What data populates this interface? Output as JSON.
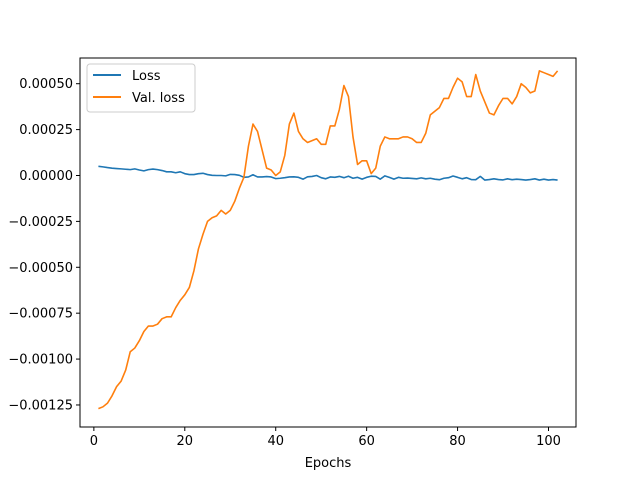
{
  "chart_data": {
    "type": "line",
    "title": "",
    "xlabel": "Epochs",
    "ylabel": "",
    "xlim": [
      -3.05,
      106.05
    ],
    "ylim": [
      -0.00137,
      0.00064
    ],
    "x_ticks": [
      0,
      20,
      40,
      60,
      80,
      100
    ],
    "x_tick_labels": [
      "0",
      "20",
      "40",
      "60",
      "80",
      "100"
    ],
    "y_ticks": [
      -0.00125,
      -0.001,
      -0.00075,
      -0.0005,
      -0.00025,
      0,
      0.00025,
      0.0005
    ],
    "y_tick_labels": [
      "−0.00125",
      "−0.00100",
      "−0.00075",
      "−0.00050",
      "−0.00025",
      "0.00000",
      "0.00025",
      "0.00050"
    ],
    "grid": false,
    "legend_position": "top-left",
    "series": [
      {
        "name": "Loss",
        "color": "#1f77b4",
        "x": [
          1,
          2,
          3,
          4,
          5,
          6,
          7,
          8,
          9,
          10,
          11,
          12,
          13,
          14,
          15,
          16,
          17,
          18,
          19,
          20,
          21,
          22,
          23,
          24,
          25,
          26,
          27,
          28,
          29,
          30,
          31,
          32,
          33,
          34,
          35,
          36,
          37,
          38,
          39,
          40,
          41,
          42,
          43,
          44,
          45,
          46,
          47,
          48,
          49,
          50,
          51,
          52,
          53,
          54,
          55,
          56,
          57,
          58,
          59,
          60,
          61,
          62,
          63,
          64,
          65,
          66,
          67,
          68,
          69,
          70,
          71,
          72,
          73,
          74,
          75,
          76,
          77,
          78,
          79,
          80,
          81,
          82,
          83,
          84,
          85,
          86,
          87,
          88,
          89,
          90,
          91,
          92,
          93,
          94,
          95,
          96,
          97,
          98,
          99,
          100,
          101,
          102
        ],
        "values": [
          5e-05,
          4.7e-05,
          4.3e-05,
          4e-05,
          3.8e-05,
          3.6e-05,
          3.4e-05,
          3.2e-05,
          3.6e-05,
          3e-05,
          2.5e-05,
          3.2e-05,
          3.5e-05,
          3.2e-05,
          2.7e-05,
          2e-05,
          2e-05,
          1.5e-05,
          2e-05,
          1e-05,
          5e-06,
          5e-06,
          1e-05,
          1.2e-05,
          5e-06,
          1e-06,
          0.0,
          0.0,
          -2e-06,
          6e-06,
          5e-06,
          1e-06,
          -1e-05,
          -8e-06,
          4e-06,
          -8e-06,
          -8e-06,
          -6e-06,
          -8e-06,
          -1.7e-05,
          -1.5e-05,
          -1.2e-05,
          -8e-06,
          -7e-06,
          -1e-05,
          -2e-05,
          -7e-06,
          -5e-06,
          0.0,
          -1.2e-05,
          -1.8e-05,
          -8e-06,
          -1e-05,
          -5e-06,
          -1.2e-05,
          -4e-06,
          -1.5e-05,
          -1e-05,
          -2e-05,
          -1e-05,
          -4e-06,
          -5e-06,
          -2e-05,
          -2e-06,
          -1e-05,
          -2e-05,
          -1e-05,
          -1.5e-05,
          -1.4e-05,
          -1.6e-05,
          -1.8e-05,
          -1.3e-05,
          -1.8e-05,
          -1.5e-05,
          -2e-05,
          -2.3e-05,
          -1.5e-05,
          -1.2e-05,
          -3e-06,
          -1e-05,
          -1.8e-05,
          -1.2e-05,
          -2.2e-05,
          -2.3e-05,
          -5e-06,
          -2.5e-05,
          -2.2e-05,
          -1.8e-05,
          -2.2e-05,
          -2.4e-05,
          -1.8e-05,
          -2.3e-05,
          -2e-05,
          -2.2e-05,
          -2.5e-05,
          -2.2e-05,
          -1.8e-05,
          -2.5e-05,
          -2e-05,
          -2.5e-05,
          -2.2e-05,
          -2.5e-05
        ]
      },
      {
        "name": "Val. loss",
        "color": "#ff7f0e",
        "x": [
          1,
          2,
          3,
          4,
          5,
          6,
          7,
          8,
          9,
          10,
          11,
          12,
          13,
          14,
          15,
          16,
          17,
          18,
          19,
          20,
          21,
          22,
          23,
          24,
          25,
          26,
          27,
          28,
          29,
          30,
          31,
          32,
          33,
          34,
          35,
          36,
          37,
          38,
          39,
          40,
          41,
          42,
          43,
          44,
          45,
          46,
          47,
          48,
          49,
          50,
          51,
          52,
          53,
          54,
          55,
          56,
          57,
          58,
          59,
          60,
          61,
          62,
          63,
          64,
          65,
          66,
          67,
          68,
          69,
          70,
          71,
          72,
          73,
          74,
          75,
          76,
          77,
          78,
          79,
          80,
          81,
          82,
          83,
          84,
          85,
          86,
          87,
          88,
          89,
          90,
          91,
          92,
          93,
          94,
          95,
          96,
          97,
          98,
          99,
          100,
          101,
          102
        ],
        "values": [
          -0.00127,
          -0.00126,
          -0.00124,
          -0.0012,
          -0.00115,
          -0.00112,
          -0.00106,
          -0.00096,
          -0.00094,
          -0.0009,
          -0.00085,
          -0.00082,
          -0.00082,
          -0.00081,
          -0.00078,
          -0.00077,
          -0.00077,
          -0.00072,
          -0.00068,
          -0.00065,
          -0.00061,
          -0.00052,
          -0.0004,
          -0.00032,
          -0.00025,
          -0.00023,
          -0.00022,
          -0.00019,
          -0.00021,
          -0.00019,
          -0.00014,
          -7e-05,
          -1e-05,
          0.00016,
          0.00028,
          0.00024,
          0.00014,
          4e-05,
          3e-05,
          0.0,
          2e-05,
          0.00011,
          0.00028,
          0.00034,
          0.00024,
          0.0002,
          0.00018,
          0.00019,
          0.0002,
          0.00017,
          0.00017,
          0.00027,
          0.00027,
          0.00036,
          0.00049,
          0.00043,
          0.00021,
          6e-05,
          8e-05,
          8e-05,
          1e-05,
          4e-05,
          0.00016,
          0.00021,
          0.0002,
          0.0002,
          0.0002,
          0.00021,
          0.00021,
          0.0002,
          0.00018,
          0.00018,
          0.00023,
          0.00033,
          0.00035,
          0.00037,
          0.00042,
          0.00042,
          0.00048,
          0.00053,
          0.00051,
          0.00043,
          0.00043,
          0.00055,
          0.00046,
          0.0004,
          0.00034,
          0.00033,
          0.00038,
          0.00042,
          0.00042,
          0.00039,
          0.00043,
          0.0005,
          0.00048,
          0.00045,
          0.00046,
          0.00057,
          0.00056,
          0.00055,
          0.00054,
          0.00057
        ]
      }
    ]
  }
}
